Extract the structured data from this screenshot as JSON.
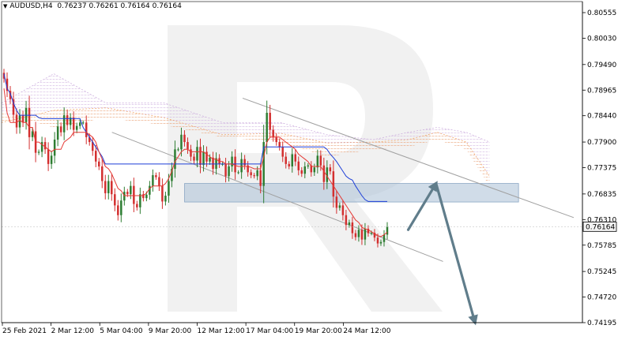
{
  "header": {
    "symbol": "AUDUSD,H4",
    "ohlc": "0.76237 0.76261 0.76164 0.76164"
  },
  "chart_data": {
    "type": "candlestick",
    "symbol": "AUDUSD",
    "timeframe": "H4",
    "current_price": "0.76164",
    "y_ticks": [
      "0.80555",
      "0.80030",
      "0.79490",
      "0.78965",
      "0.78440",
      "0.77900",
      "0.77375",
      "0.76835",
      "0.76310",
      "0.75785",
      "0.75245",
      "0.74720",
      "0.74195"
    ],
    "y_range": [
      0.74195,
      0.80555
    ],
    "x_labels": [
      "25 Feb 2021",
      "2 Mar 12:00",
      "5 Mar 04:00",
      "9 Mar 20:00",
      "12 Mar 12:00",
      "17 Mar 04:00",
      "19 Mar 20:00",
      "24 Mar 12:00"
    ],
    "colors": {
      "bull": "#2e7d32",
      "bear": "#d32f2f",
      "tenkan": "#e53935",
      "kijun": "#1e3fd8",
      "cloud_bull": "#f0a060",
      "cloud_bear": "#c9a8dc",
      "channel": "#a0a0a0",
      "zone": "#a9bfd6",
      "arrow": "#607d8b"
    },
    "closes": [
      0.792,
      0.7895,
      0.7878,
      0.7846,
      0.782,
      0.7845,
      0.783,
      0.786,
      0.78,
      0.7812,
      0.7768,
      0.777,
      0.779,
      0.7775,
      0.7745,
      0.7762,
      0.7795,
      0.7822,
      0.781,
      0.7845,
      0.7825,
      0.784,
      0.7815,
      0.7823,
      0.783,
      0.783,
      0.78,
      0.779,
      0.7772,
      0.775,
      0.774,
      0.771,
      0.7685,
      0.771,
      0.7683,
      0.766,
      0.764,
      0.767,
      0.7688,
      0.7683,
      0.77,
      0.7663,
      0.7656,
      0.7683,
      0.7675,
      0.7682,
      0.77,
      0.7722,
      0.7718,
      0.77,
      0.7668,
      0.768,
      0.771,
      0.7735,
      0.7775,
      0.7775,
      0.7805,
      0.779,
      0.7775,
      0.776,
      0.7752,
      0.778,
      0.7743,
      0.777,
      0.775,
      0.7758,
      0.7735,
      0.7757,
      0.7745,
      0.7745,
      0.772,
      0.774,
      0.776,
      0.7728,
      0.7728,
      0.7755,
      0.7742,
      0.7728,
      0.7722,
      0.772,
      0.7732,
      0.77,
      0.779,
      0.785,
      0.7815,
      0.78,
      0.779,
      0.778,
      0.776,
      0.7745,
      0.774,
      0.7765,
      0.775,
      0.7732,
      0.7725,
      0.774,
      0.7742,
      0.7728,
      0.7738,
      0.7762,
      0.7742,
      0.7708,
      0.7738,
      0.773,
      0.7678,
      0.7655,
      0.766,
      0.764,
      0.762,
      0.7625,
      0.7603,
      0.7595,
      0.761,
      0.759,
      0.7612,
      0.7603,
      0.7604,
      0.7594,
      0.7582,
      0.7585,
      0.76,
      0.7616
    ],
    "tenkan": [
      0.79,
      0.785,
      0.783,
      0.783,
      0.783,
      0.7835,
      0.783,
      0.783,
      0.782,
      0.782,
      0.779,
      0.779,
      0.7785,
      0.778,
      0.7775,
      0.777,
      0.7775,
      0.7775,
      0.7775,
      0.779,
      0.7795,
      0.78,
      0.781,
      0.781,
      0.781,
      0.781,
      0.781,
      0.7805,
      0.78,
      0.779,
      0.777,
      0.7755,
      0.774,
      0.7735,
      0.7725,
      0.771,
      0.7695,
      0.769,
      0.768,
      0.768,
      0.768,
      0.768,
      0.768,
      0.768,
      0.768,
      0.7685,
      0.7695,
      0.77,
      0.77,
      0.77,
      0.77,
      0.7705,
      0.7715,
      0.773,
      0.775,
      0.776,
      0.777,
      0.7775,
      0.7775,
      0.777,
      0.777,
      0.777,
      0.777,
      0.777,
      0.7765,
      0.776,
      0.7755,
      0.7755,
      0.775,
      0.775,
      0.7745,
      0.7745,
      0.7745,
      0.7742,
      0.774,
      0.774,
      0.774,
      0.774,
      0.7738,
      0.7735,
      0.7735,
      0.7735,
      0.776,
      0.779,
      0.78,
      0.78,
      0.78,
      0.78,
      0.7795,
      0.779,
      0.7785,
      0.778,
      0.7775,
      0.7765,
      0.776,
      0.7755,
      0.775,
      0.774,
      0.774,
      0.774,
      0.774,
      0.773,
      0.772,
      0.771,
      0.77,
      0.769,
      0.768,
      0.767,
      0.766,
      0.765,
      0.764,
      0.763,
      0.7625,
      0.7615,
      0.7612,
      0.761,
      0.7606,
      0.7602,
      0.7598,
      0.7596,
      0.76,
      0.7605
    ],
    "kijun": [
      0.793,
      0.79,
      0.789,
      0.787,
      0.7855,
      0.7845,
      0.7845,
      0.7845,
      0.7845,
      0.7845,
      0.7845,
      0.784,
      0.7838,
      0.7838,
      0.7838,
      0.7838,
      0.7838,
      0.7838,
      0.7838,
      0.7838,
      0.7838,
      0.7838,
      0.7838,
      0.7838,
      0.7838,
      0.782,
      0.781,
      0.78,
      0.779,
      0.778,
      0.777,
      0.776,
      0.7745,
      0.7745,
      0.7745,
      0.7745,
      0.7745,
      0.7745,
      0.7745,
      0.7745,
      0.7745,
      0.7745,
      0.7745,
      0.7745,
      0.7745,
      0.7745,
      0.7745,
      0.7745,
      0.7745,
      0.7745,
      0.7745,
      0.7745,
      0.7745,
      0.7745,
      0.7745,
      0.7745,
      0.7745,
      0.7745,
      0.7745,
      0.7745,
      0.7745,
      0.7745,
      0.7745,
      0.7745,
      0.7745,
      0.7745,
      0.7745,
      0.7745,
      0.7745,
      0.7745,
      0.7745,
      0.7745,
      0.7745,
      0.7745,
      0.7745,
      0.7745,
      0.7745,
      0.7745,
      0.7745,
      0.7745,
      0.7745,
      0.7745,
      0.778,
      0.778,
      0.778,
      0.778,
      0.778,
      0.778,
      0.778,
      0.778,
      0.778,
      0.778,
      0.778,
      0.778,
      0.778,
      0.778,
      0.778,
      0.778,
      0.778,
      0.778,
      0.778,
      0.778,
      0.7775,
      0.7765,
      0.7758,
      0.775,
      0.774,
      0.773,
      0.772,
      0.7715,
      0.7712,
      0.77,
      0.769,
      0.768,
      0.7672,
      0.7668,
      0.7668,
      0.7668,
      0.7668,
      0.7668,
      0.7668,
      0.7668
    ],
    "cloud_x": [
      0.0,
      0.09,
      0.18,
      0.28,
      0.38,
      0.48,
      0.56,
      0.64,
      0.7,
      0.75,
      0.8,
      0.84
    ],
    "cloud_a": [
      0.783,
      0.7855,
      0.786,
      0.784,
      0.7805,
      0.7808,
      0.7788,
      0.779,
      0.7795,
      0.781,
      0.779,
      0.772
    ],
    "cloud_b": [
      0.785,
      0.782,
      0.784,
      0.7825,
      0.78,
      0.779,
      0.776,
      0.7775,
      0.778,
      0.7795,
      0.7775,
      0.77
    ],
    "cloud_hi": [
      0.787,
      0.793,
      0.787,
      0.787,
      0.783,
      0.783,
      0.7805,
      0.7795,
      0.781,
      0.782,
      0.781,
      0.779
    ],
    "channel_upper": [
      {
        "x": 0.415,
        "y": 0.788
      },
      {
        "x": 0.985,
        "y": 0.7635
      }
    ],
    "channel_lower": [
      {
        "x": 0.19,
        "y": 0.781
      },
      {
        "x": 0.76,
        "y": 0.7545
      }
    ],
    "zone": {
      "x0": 0.315,
      "x1": 0.89,
      "y_top": 0.7705,
      "y_bottom": 0.7667
    },
    "forecast_path": [
      {
        "x": 0.7,
        "y": 0.761
      },
      {
        "x": 0.748,
        "y": 0.7705
      },
      {
        "x": 0.815,
        "y": 0.742
      }
    ]
  }
}
